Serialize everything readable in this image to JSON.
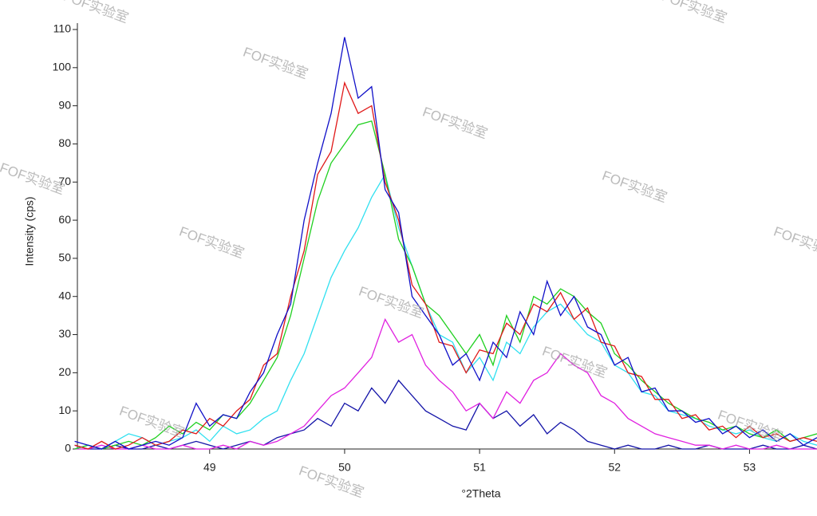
{
  "chart_data": {
    "type": "line",
    "xlabel": "°2Theta",
    "ylabel": "Intensity (cps)",
    "x": [
      48.0,
      48.1,
      48.2,
      48.3,
      48.4,
      48.5,
      48.6,
      48.7,
      48.8,
      48.9,
      49.0,
      49.1,
      49.2,
      49.3,
      49.4,
      49.5,
      49.6,
      49.7,
      49.8,
      49.9,
      50.0,
      50.1,
      50.2,
      50.3,
      50.4,
      50.5,
      50.6,
      50.7,
      50.8,
      50.9,
      51.0,
      51.1,
      51.2,
      51.3,
      51.4,
      51.5,
      51.6,
      51.7,
      51.8,
      51.9,
      52.0,
      52.1,
      52.2,
      52.3,
      52.4,
      52.5,
      52.6,
      52.7,
      52.8,
      52.9,
      53.0,
      53.1,
      53.2,
      53.3,
      53.4,
      53.5
    ],
    "series": [
      {
        "color": "#1414a8",
        "values": [
          1,
          0,
          0,
          1,
          0,
          0,
          1,
          0,
          1,
          2,
          1,
          0,
          1,
          2,
          1,
          3,
          4,
          5,
          8,
          6,
          12,
          10,
          16,
          12,
          18,
          14,
          10,
          8,
          6,
          5,
          12,
          8,
          10,
          6,
          9,
          4,
          7,
          5,
          2,
          1,
          0,
          1,
          0,
          0,
          1,
          0,
          0,
          1,
          0,
          0,
          0,
          1,
          0,
          0,
          1,
          0
        ]
      },
      {
        "color": "#e020e0",
        "values": [
          0,
          0,
          1,
          0,
          0,
          1,
          0,
          0,
          1,
          0,
          0,
          1,
          0,
          2,
          1,
          2,
          4,
          6,
          10,
          14,
          16,
          20,
          24,
          34,
          28,
          30,
          22,
          18,
          15,
          10,
          12,
          8,
          15,
          12,
          18,
          20,
          25,
          22,
          20,
          14,
          12,
          8,
          6,
          4,
          3,
          2,
          1,
          1,
          0,
          1,
          0,
          0,
          1,
          0,
          0,
          0
        ]
      },
      {
        "color": "#30e0f0",
        "values": [
          0,
          1,
          0,
          2,
          4,
          3,
          1,
          2,
          3,
          5,
          2,
          6,
          4,
          5,
          8,
          10,
          18,
          25,
          35,
          45,
          52,
          58,
          66,
          72,
          58,
          48,
          38,
          30,
          28,
          20,
          24,
          18,
          28,
          25,
          32,
          36,
          38,
          34,
          30,
          28,
          22,
          20,
          15,
          14,
          10,
          9,
          8,
          6,
          5,
          4,
          5,
          3,
          2,
          4,
          2,
          1
        ]
      },
      {
        "color": "#20d020",
        "values": [
          0,
          1,
          0,
          1,
          2,
          1,
          3,
          6,
          4,
          7,
          5,
          9,
          8,
          12,
          18,
          24,
          35,
          50,
          65,
          75,
          80,
          85,
          86,
          72,
          55,
          48,
          38,
          35,
          30,
          25,
          30,
          22,
          35,
          28,
          40,
          38,
          42,
          40,
          36,
          33,
          25,
          22,
          18,
          15,
          12,
          10,
          8,
          7,
          5,
          6,
          4,
          3,
          5,
          2,
          3,
          4
        ]
      },
      {
        "color": "#e01818",
        "values": [
          1,
          0,
          2,
          0,
          1,
          3,
          1,
          2,
          5,
          4,
          8,
          6,
          10,
          13,
          22,
          25,
          40,
          52,
          72,
          78,
          96,
          88,
          90,
          70,
          60,
          43,
          38,
          28,
          27,
          20,
          26,
          25,
          33,
          30,
          38,
          36,
          41,
          34,
          37,
          28,
          27,
          20,
          19,
          13,
          13,
          8,
          9,
          5,
          6,
          3,
          6,
          3,
          4,
          2,
          3,
          2
        ]
      },
      {
        "color": "#1010c8",
        "values": [
          2,
          1,
          0,
          2,
          0,
          1,
          2,
          1,
          3,
          12,
          6,
          9,
          8,
          15,
          20,
          30,
          38,
          60,
          75,
          88,
          108,
          92,
          95,
          68,
          62,
          40,
          35,
          30,
          22,
          25,
          18,
          28,
          24,
          36,
          30,
          44,
          35,
          40,
          32,
          30,
          22,
          24,
          15,
          16,
          10,
          10,
          7,
          8,
          4,
          6,
          3,
          5,
          2,
          4,
          1,
          3
        ]
      }
    ],
    "xlim": [
      48.02,
      53.5
    ],
    "xticks": [
      49,
      50,
      51,
      52,
      53
    ],
    "ylim": [
      0,
      110
    ],
    "yticks": [
      0,
      10,
      20,
      30,
      40,
      50,
      60,
      70,
      80,
      90,
      100,
      110
    ],
    "grid": false
  },
  "watermark": "FOF实验室"
}
